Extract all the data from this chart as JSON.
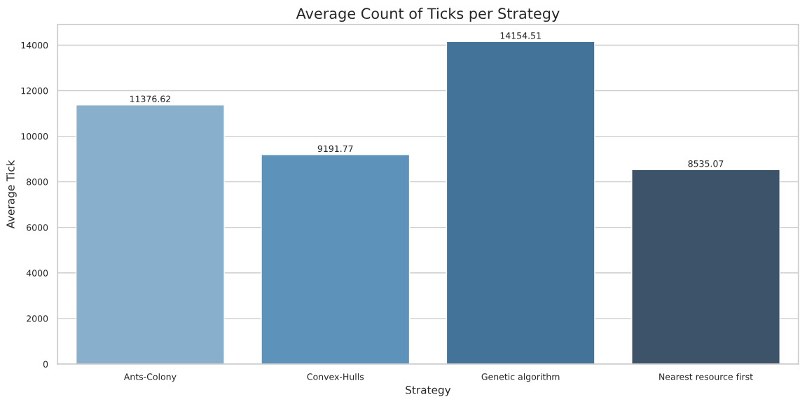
{
  "chart_data": {
    "type": "bar",
    "title": "Average Count of Ticks per Strategy",
    "xlabel": "Strategy",
    "ylabel": "Average Tick",
    "categories": [
      "Ants-Colony",
      "Convex-Hulls",
      "Genetic algorithm",
      "Nearest resource first"
    ],
    "values": [
      11376.62,
      9191.77,
      14154.51,
      8535.07
    ],
    "colors": [
      "#88afcb",
      "#5d93ba",
      "#44739a",
      "#3d5369"
    ],
    "ylim": [
      0,
      14900
    ],
    "yticks": [
      0,
      2000,
      4000,
      6000,
      8000,
      10000,
      12000,
      14000
    ],
    "grid": "y",
    "data_labels": true,
    "legend": false
  }
}
